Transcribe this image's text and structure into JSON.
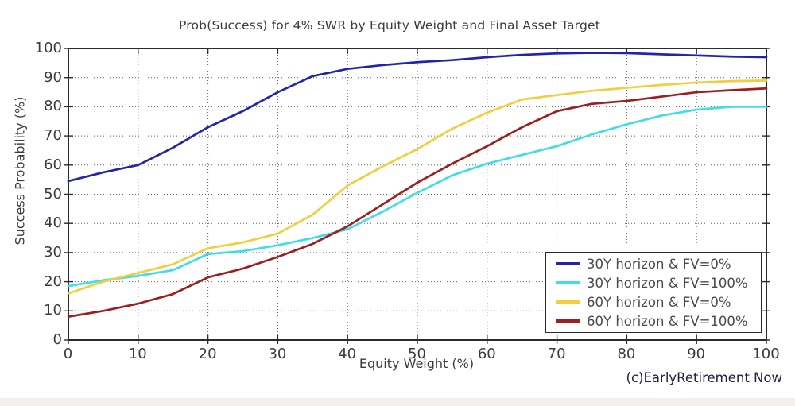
{
  "chart_data": {
    "type": "line",
    "title": "Prob(Success) for 4% SWR by Equity Weight and Final Asset Target",
    "xlabel": "Equity Weight (%)",
    "ylabel": "Success Probability (%)",
    "annotation": "(c)EarlyRetirement Now",
    "xlim": [
      0,
      100
    ],
    "ylim": [
      0,
      100
    ],
    "grid": true,
    "legend_position": "bottom-right",
    "x_ticks": [
      0,
      10,
      20,
      30,
      40,
      50,
      60,
      70,
      80,
      90,
      100
    ],
    "y_ticks": [
      0,
      10,
      20,
      30,
      40,
      50,
      60,
      70,
      80,
      90,
      100
    ],
    "x": [
      0,
      5,
      10,
      15,
      20,
      25,
      30,
      35,
      40,
      45,
      50,
      55,
      60,
      65,
      70,
      75,
      80,
      85,
      90,
      95,
      100
    ],
    "series": [
      {
        "name": "30Y horizon & FV=0%",
        "color": "#2323ad",
        "values": [
          54.5,
          57.5,
          60,
          66,
          73,
          78.5,
          85,
          90.5,
          93,
          94.3,
          95.3,
          96,
          97,
          97.8,
          98.3,
          98.5,
          98.4,
          98,
          97.6,
          97.2,
          97
        ]
      },
      {
        "name": "30Y horizon & FV=100%",
        "color": "#3fdde9",
        "values": [
          18.5,
          20.5,
          22,
          24,
          29.5,
          30.5,
          32.5,
          35,
          38,
          44,
          50.5,
          56.5,
          60.5,
          63.5,
          66.5,
          70.5,
          74,
          77,
          79,
          80,
          80
        ]
      },
      {
        "name": "60Y horizon & FV=0%",
        "color": "#f2ce3c",
        "values": [
          16,
          20,
          23,
          26,
          31.5,
          33.5,
          36.5,
          43,
          53,
          59.5,
          65.5,
          72.5,
          78,
          82.5,
          84,
          85.5,
          86.5,
          87.5,
          88.3,
          88.8,
          89
        ]
      },
      {
        "name": "60Y horizon & FV=100%",
        "color": "#9b2020",
        "values": [
          8,
          10,
          12.5,
          15.8,
          21.5,
          24.5,
          28.5,
          33,
          39,
          46.5,
          54,
          60.5,
          66.5,
          73,
          78.5,
          81,
          82,
          83.5,
          85,
          85.7,
          86.3
        ]
      }
    ],
    "styles": {
      "grid_color": "#5e5e5e",
      "frame_color": "#2b2b2b",
      "text_color": "#3c3c3c",
      "copyright_color": "#202040",
      "bottom_strip_color": "#f3f0eb"
    }
  }
}
